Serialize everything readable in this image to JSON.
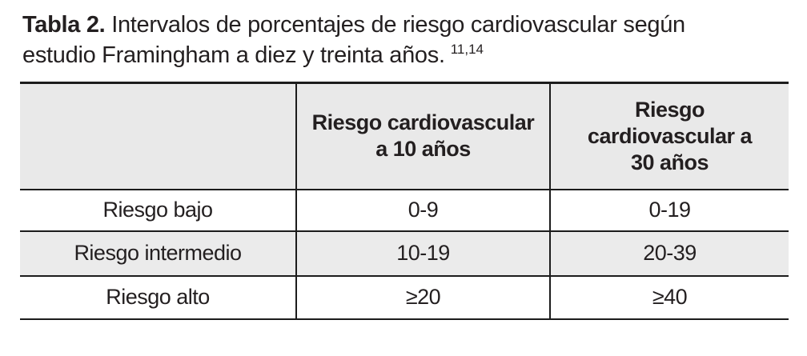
{
  "caption": {
    "label": "Tabla 2.",
    "line1_rest": "Intervalos de porcentajes de riesgo cardiovascular según",
    "line2": "estudio Framingham a diez y treinta años.",
    "superscript": "11,14"
  },
  "table": {
    "columns": [
      "",
      "Riesgo cardiovascular a 10 años",
      "Riesgo cardiovascular a 30 años"
    ],
    "rows": [
      {
        "label": "Riesgo bajo",
        "values": [
          "0-9",
          "0-19"
        ]
      },
      {
        "label": "Riesgo intermedio",
        "values": [
          "10-19",
          "20-39"
        ]
      },
      {
        "label": "Riesgo alto",
        "values": [
          "≥20",
          "≥40"
        ]
      }
    ]
  },
  "chart_data": {
    "type": "table",
    "title": "Tabla 2. Intervalos de porcentajes de riesgo cardiovascular según estudio Framingham a diez y treinta años. 11,14",
    "columns": [
      "",
      "Riesgo cardiovascular a 10 años",
      "Riesgo cardiovascular a 30 años"
    ],
    "rows": [
      [
        "Riesgo bajo",
        "0-9",
        "0-19"
      ],
      [
        "Riesgo intermedio",
        "10-19",
        "20-39"
      ],
      [
        "Riesgo alto",
        "≥20",
        "≥40"
      ]
    ]
  },
  "colors": {
    "header_background": "#e9e9e9",
    "stripe_background": "#ebebeb",
    "border": "#1c1c1c",
    "text": "#231f20"
  }
}
